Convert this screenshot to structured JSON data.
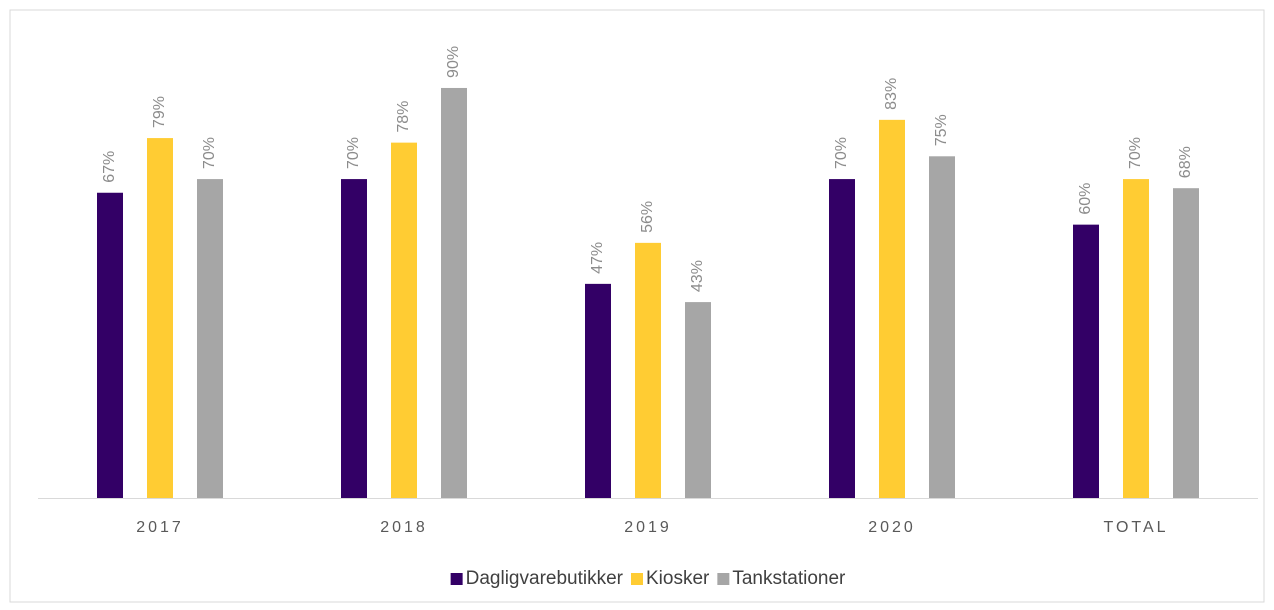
{
  "chart_data": {
    "type": "bar",
    "categories": [
      "2017",
      "2018",
      "2019",
      "2020",
      "TOTAL"
    ],
    "series": [
      {
        "name": "Dagligvarebutikker",
        "color": "#330066",
        "values": [
          67,
          70,
          47,
          70,
          60
        ],
        "value_labels": [
          "67%",
          "70%",
          "47%",
          "70%",
          "60%"
        ]
      },
      {
        "name": "Kiosker",
        "color": "#ffcc33",
        "values": [
          79,
          78,
          56,
          83,
          70
        ],
        "value_labels": [
          "79%",
          "78%",
          "56%",
          "83%",
          "70%"
        ]
      },
      {
        "name": "Tankstationer",
        "color": "#a6a6a6",
        "values": [
          70,
          90,
          43,
          75,
          68
        ],
        "value_labels": [
          "70%",
          "90%",
          "43%",
          "75%",
          "68%"
        ]
      }
    ],
    "legend": "bottom"
  }
}
